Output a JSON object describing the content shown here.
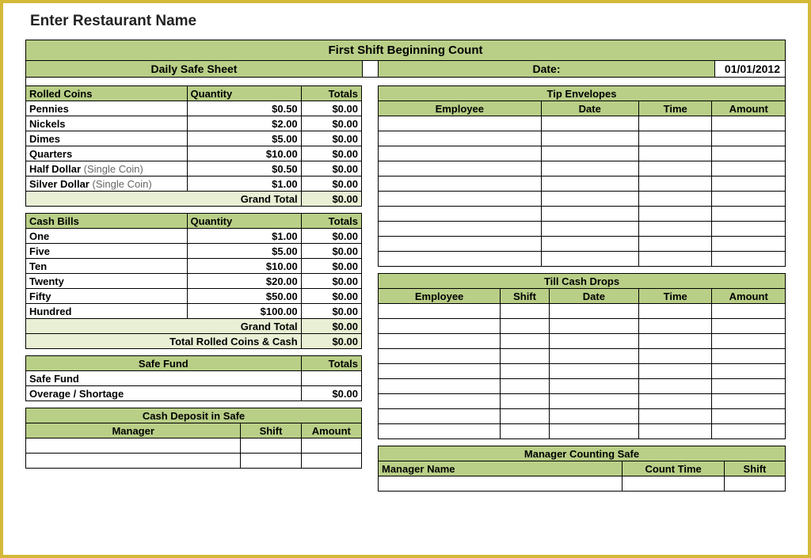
{
  "title": "Enter Restaurant Name",
  "header": {
    "main": "First Shift Beginning Count",
    "daily": "Daily Safe Sheet",
    "date_label": "Date:",
    "date_value": "01/01/2012"
  },
  "rolled_coins": {
    "title": "Rolled Coins",
    "col_qty": "Quantity",
    "col_totals": "Totals",
    "rows": [
      {
        "label": "Pennies",
        "qty": "$0.50",
        "total": "$0.00"
      },
      {
        "label": "Nickels",
        "qty": "$2.00",
        "total": "$0.00"
      },
      {
        "label": "Dimes",
        "qty": "$5.00",
        "total": "$0.00"
      },
      {
        "label": "Quarters",
        "qty": "$10.00",
        "total": "$0.00"
      },
      {
        "label": "Half Dollar",
        "note": "(Single Coin)",
        "qty": "$0.50",
        "total": "$0.00"
      },
      {
        "label": "Silver Dollar",
        "note": "(Single Coin)",
        "qty": "$1.00",
        "total": "$0.00"
      }
    ],
    "grand_total_label": "Grand Total",
    "grand_total": "$0.00"
  },
  "cash_bills": {
    "title": "Cash Bills",
    "col_qty": "Quantity",
    "col_totals": "Totals",
    "rows": [
      {
        "label": "One",
        "qty": "$1.00",
        "total": "$0.00"
      },
      {
        "label": "Five",
        "qty": "$5.00",
        "total": "$0.00"
      },
      {
        "label": "Ten",
        "qty": "$10.00",
        "total": "$0.00"
      },
      {
        "label": "Twenty",
        "qty": "$20.00",
        "total": "$0.00"
      },
      {
        "label": "Fifty",
        "qty": "$50.00",
        "total": "$0.00"
      },
      {
        "label": "Hundred",
        "qty": "$100.00",
        "total": "$0.00"
      }
    ],
    "grand_total_label": "Grand Total",
    "grand_total": "$0.00",
    "total_all_label": "Total Rolled Coins & Cash",
    "total_all": "$0.00"
  },
  "safe_fund": {
    "title": "Safe Fund",
    "col_totals": "Totals",
    "rows": [
      {
        "label": "Safe Fund",
        "total": ""
      },
      {
        "label": "Overage / Shortage",
        "total": "$0.00"
      }
    ]
  },
  "cash_deposit": {
    "title": "Cash Deposit in Safe",
    "col_manager": "Manager",
    "col_shift": "Shift",
    "col_amount": "Amount",
    "blank_rows": 2
  },
  "tip_envelopes": {
    "title": "Tip Envelopes",
    "col_employee": "Employee",
    "col_date": "Date",
    "col_time": "Time",
    "col_amount": "Amount",
    "blank_rows": 10
  },
  "till_drops": {
    "title": "Till Cash Drops",
    "col_employee": "Employee",
    "col_shift": "Shift",
    "col_date": "Date",
    "col_time": "Time",
    "col_amount": "Amount",
    "blank_rows": 9
  },
  "manager_counting": {
    "title": "Manager Counting Safe",
    "col_manager": "Manager Name",
    "col_time": "Count Time",
    "col_shift": "Shift",
    "blank_rows": 1
  },
  "colors": {
    "header_bg": "#b9cf87",
    "subtotal_bg": "#e8efd4",
    "border": "#000000",
    "outer_border": "#d4b838"
  }
}
